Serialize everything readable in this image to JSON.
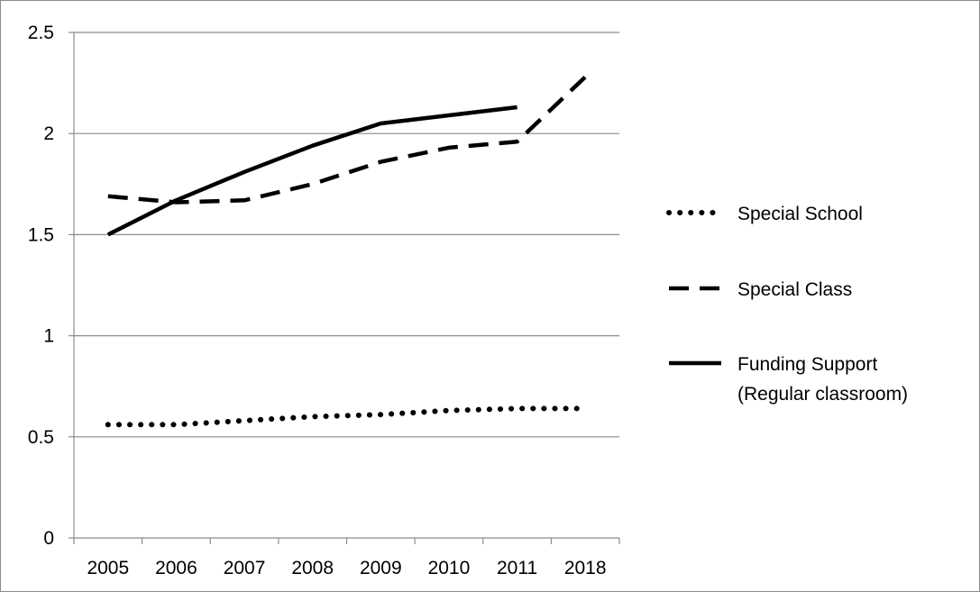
{
  "chart_data": {
    "type": "line",
    "title": "",
    "xlabel": "",
    "ylabel": "",
    "categories": [
      "2005",
      "2006",
      "2007",
      "2008",
      "2009",
      "2010",
      "2011",
      "2018"
    ],
    "ylim": [
      0,
      2.5
    ],
    "yticks": [
      "0",
      "0.5",
      "1",
      "1.5",
      "2",
      "2.5"
    ],
    "grid": "horizontal",
    "legend_position": "right",
    "series": [
      {
        "name": "Special School",
        "style": "dotted",
        "color": "#000000",
        "values": [
          0.56,
          0.56,
          0.58,
          0.6,
          0.61,
          0.63,
          0.64,
          0.64
        ]
      },
      {
        "name": "Special Class",
        "style": "dashed",
        "color": "#000000",
        "values": [
          1.69,
          1.66,
          1.67,
          1.75,
          1.86,
          1.93,
          1.96,
          2.28
        ]
      },
      {
        "name": "Funding Support (Regular classroom)",
        "label_lines": [
          "Funding Support",
          "(Regular classroom)"
        ],
        "style": "solid",
        "color": "#000000",
        "values": [
          1.5,
          1.67,
          1.81,
          1.94,
          2.05,
          2.09,
          2.13,
          null
        ]
      }
    ]
  }
}
